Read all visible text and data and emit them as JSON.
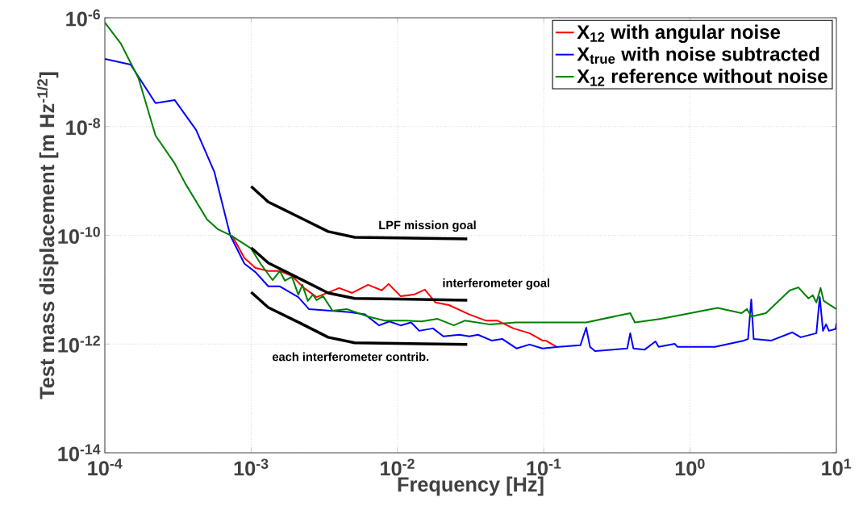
{
  "chart_data": {
    "type": "line",
    "xlabel": "Frequency  [Hz]",
    "ylabel": "Test mass displacement [m Hz$^{-1/2}$]",
    "log": "xy",
    "grid": true,
    "legend": "top right",
    "xlim": [
      0.0001,
      10
    ],
    "ylim": [
      1e-14,
      1e-06
    ],
    "xticks": [
      {
        "value": 0.0001,
        "label": "10$^{-4}$"
      },
      {
        "value": 0.001,
        "label": "10$^{-3}$"
      },
      {
        "value": 0.01,
        "label": "10$^{-2}$"
      },
      {
        "value": 0.1,
        "label": "10$^{-1}$"
      },
      {
        "value": 1,
        "label": "10$^{0}$"
      },
      {
        "value": 10,
        "label": "10$^{1}$"
      }
    ],
    "yticks": [
      {
        "value": 1e-14,
        "label": "10$^{-14}$"
      },
      {
        "value": 1e-12,
        "label": "10$^{-12}$"
      },
      {
        "value": 1e-10,
        "label": "10$^{-10}$"
      },
      {
        "value": 1e-08,
        "label": "10$^{-8}$"
      },
      {
        "value": 1e-06,
        "label": "10$^{-6}$"
      }
    ],
    "series": [
      {
        "name": "X$_{12}$ with angular noise",
        "color": "#ff0000",
        "x": [
          0.00074,
          0.0009,
          0.00107,
          0.00131,
          0.00157,
          0.0019,
          0.0023,
          0.0028,
          0.004,
          0.0049,
          0.0063,
          0.0078,
          0.0087,
          0.0105,
          0.0129,
          0.0154,
          0.0182,
          0.0225,
          0.031,
          0.04,
          0.048,
          0.062,
          0.08,
          0.098,
          0.103,
          0.122
        ],
        "values": [
          9.9e-11,
          3.8e-11,
          2.5e-11,
          2.2e-11,
          2.2e-11,
          1.79e-11,
          1.07e-11,
          7.3e-12,
          1.07e-11,
          8.7e-12,
          1.23e-11,
          9.7e-12,
          1.27e-11,
          7.6e-12,
          8.1e-12,
          1e-11,
          5.8e-12,
          5.2e-12,
          3.5e-12,
          2.7e-12,
          2.7e-12,
          1.94e-12,
          1.58e-12,
          1.16e-12,
          1.16e-12,
          8.9e-13
        ]
      },
      {
        "name": "X$_{true}$ with noise subtracted",
        "color": "#0000ff",
        "x": [
          0.0001,
          0.00015,
          0.000222,
          0.0003,
          0.00042,
          0.00056,
          0.00072,
          0.0009,
          0.00107,
          0.00131,
          0.00157,
          0.0021,
          0.00248,
          0.0035,
          0.0047,
          0.006,
          0.0075,
          0.0088,
          0.0105,
          0.0124,
          0.0141,
          0.0175,
          0.0206,
          0.0265,
          0.031,
          0.0355,
          0.044,
          0.052,
          0.065,
          0.08,
          0.098,
          0.126,
          0.178,
          0.195,
          0.207,
          0.224,
          0.296,
          0.372,
          0.39,
          0.41,
          0.49,
          0.58,
          0.61,
          0.785,
          0.82,
          1.48,
          2.34,
          2.49,
          2.62,
          2.72,
          3.6,
          5.0,
          5.7,
          7.3,
          7.7,
          8.1,
          8.5,
          8.9,
          9.9,
          10
        ],
        "values": [
          1.75e-07,
          1.38e-07,
          2.7e-08,
          3.07e-08,
          8.7e-09,
          1.47e-09,
          9.9e-11,
          3e-11,
          2.1e-11,
          1.15e-11,
          1.15e-11,
          7.3e-12,
          4.4e-12,
          4.1e-12,
          3.85e-12,
          3.5e-12,
          2.2e-12,
          2.6e-12,
          2.2e-12,
          2.5e-12,
          1.75e-12,
          1.94e-12,
          1.38e-12,
          1.48e-12,
          1.38e-12,
          1.48e-12,
          1.16e-12,
          1.24e-12,
          8.3e-13,
          9.8e-13,
          8.3e-13,
          8.9e-13,
          9.5e-13,
          2e-12,
          8.9e-13,
          7.4e-13,
          7.9e-13,
          8.3e-13,
          1.58e-12,
          8.3e-13,
          7.9e-13,
          1.12e-12,
          8.9e-13,
          1.01e-12,
          8.9e-13,
          8.9e-13,
          1.16e-12,
          1.24e-12,
          6.6e-12,
          1.24e-12,
          1.16e-12,
          1.64e-12,
          1.33e-12,
          1.58e-12,
          7.3e-12,
          1.75e-12,
          2.3e-12,
          1.75e-12,
          1.9e-12,
          2.4e-12
        ]
      },
      {
        "name": "X$_{12}$ reference without noise",
        "color": "#008000",
        "x": [
          0.0001,
          0.000129,
          0.00017,
          0.000222,
          0.0003,
          0.000356,
          0.0005,
          0.00059,
          0.00073,
          0.001,
          0.00116,
          0.0014,
          0.00157,
          0.0017,
          0.0019,
          0.0021,
          0.00224,
          0.00244,
          0.00264,
          0.0028,
          0.0031,
          0.0036,
          0.0045,
          0.0063,
          0.0082,
          0.0113,
          0.0146,
          0.0188,
          0.0243,
          0.029,
          0.0425,
          0.0645,
          0.083,
          0.117,
          0.195,
          0.39,
          0.42,
          0.634,
          1.54,
          2.25,
          2.45,
          2.62,
          3.3,
          4.8,
          5.5,
          6.45,
          6.9,
          7.3,
          7.8,
          8.2,
          10
        ],
        "values": [
          8.2e-07,
          3.3e-07,
          7.7e-08,
          6.8e-09,
          2.1e-09,
          8.8e-10,
          1.95e-10,
          1.3e-10,
          9.9e-11,
          5.7e-11,
          3e-11,
          1.5e-11,
          2.2e-11,
          1.46e-11,
          1.73e-11,
          8.1e-12,
          1.23e-11,
          6.2e-12,
          8.1e-12,
          6.4e-12,
          7.6e-12,
          4.1e-12,
          4.4e-12,
          3.2e-12,
          2.7e-12,
          2.7e-12,
          2.6e-12,
          2.9e-12,
          2.2e-12,
          2.7e-12,
          2.3e-12,
          2.5e-12,
          2.5e-12,
          2.5e-12,
          2.5e-12,
          3.7e-12,
          2.5e-12,
          2.9e-12,
          4.6e-12,
          3.7e-12,
          4.4e-12,
          3.2e-12,
          3.7e-12,
          9.7e-12,
          1.1e-11,
          6.9e-12,
          7.9e-12,
          5.8e-12,
          1.07e-11,
          6.2e-12,
          4.4e-12
        ]
      },
      {
        "color": "#000000",
        "x": [
          0.001,
          0.00131,
          0.00218,
          0.00336,
          0.0051,
          0.03
        ],
        "values": [
          7.9e-10,
          4.1e-10,
          2.09e-10,
          1.17e-10,
          9.2e-11,
          8.6e-11
        ]
      },
      {
        "color": "#000000",
        "x": [
          0.001,
          0.00131,
          0.00218,
          0.00336,
          0.0051,
          0.03
        ],
        "values": [
          5.9e-11,
          3.1e-11,
          1.56e-11,
          8.7e-12,
          6.9e-12,
          6.4e-12
        ]
      },
      {
        "color": "#000000",
        "x": [
          0.001,
          0.00131,
          0.00218,
          0.00336,
          0.0051,
          0.03
        ],
        "values": [
          9e-12,
          4.7e-12,
          2.4e-12,
          1.33e-12,
          1.05e-12,
          9.8e-13
        ]
      }
    ],
    "annotations": [
      "LPF mission goal",
      "interferometer goal",
      "each interferometer contrib."
    ]
  }
}
